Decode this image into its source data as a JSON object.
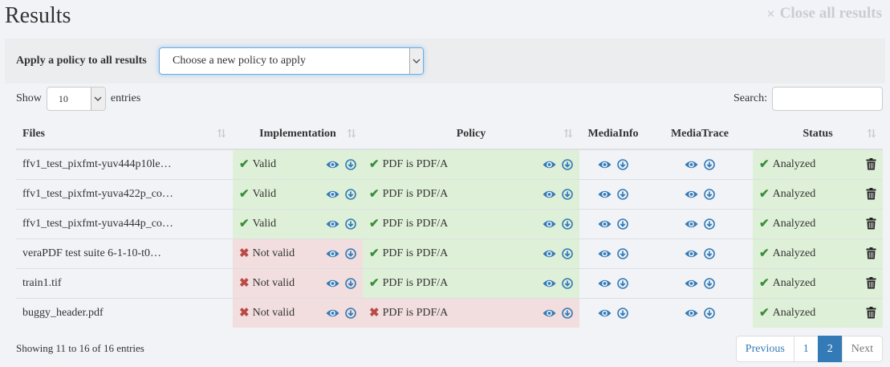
{
  "page": {
    "title": "Results",
    "close_all_label": "Close all results",
    "close_all_icon": "×"
  },
  "policy_bar": {
    "label": "Apply a policy to all results",
    "selected": "Choose a new policy to apply"
  },
  "length": {
    "show_label": "Show",
    "value": "10",
    "entries_label": "entries"
  },
  "search": {
    "label": "Search:",
    "value": ""
  },
  "colors": {
    "valid_bg": "#dff0d8",
    "invalid_bg": "#f2dede",
    "check": "#3c8d3c",
    "cross": "#b94a48",
    "icon_blue": "#337ab7",
    "accent": "#337ab7"
  },
  "table": {
    "headers": {
      "files": "Files",
      "implementation": "Implementation",
      "policy": "Policy",
      "mediainfo": "MediaInfo",
      "mediatrace": "MediaTrace",
      "status": "Status"
    },
    "rows": [
      {
        "file": "ffv1_test_pixfmt-yuv444p10le…",
        "implementation": "Valid",
        "impl_ok": true,
        "policy": "PDF is PDF/A",
        "policy_ok": true,
        "status": "Analyzed"
      },
      {
        "file": "ffv1_test_pixfmt-yuva422p_co…",
        "implementation": "Valid",
        "impl_ok": true,
        "policy": "PDF is PDF/A",
        "policy_ok": true,
        "status": "Analyzed"
      },
      {
        "file": "ffv1_test_pixfmt-yuva444p_co…",
        "implementation": "Valid",
        "impl_ok": true,
        "policy": "PDF is PDF/A",
        "policy_ok": true,
        "status": "Analyzed"
      },
      {
        "file": "veraPDF test suite 6-1-10-t0…",
        "implementation": "Not valid",
        "impl_ok": false,
        "policy": "PDF is PDF/A",
        "policy_ok": true,
        "status": "Analyzed"
      },
      {
        "file": "train1.tif",
        "implementation": "Not valid",
        "impl_ok": false,
        "policy": "PDF is PDF/A",
        "policy_ok": true,
        "status": "Analyzed"
      },
      {
        "file": "buggy_header.pdf",
        "implementation": "Not valid",
        "impl_ok": false,
        "policy": "PDF is PDF/A",
        "policy_ok": false,
        "status": "Analyzed"
      }
    ]
  },
  "footer": {
    "info": "Showing 11 to 16 of 16 entries"
  },
  "pagination": {
    "previous": "Previous",
    "pages": [
      "1",
      "2"
    ],
    "active_page": "2",
    "next": "Next"
  }
}
